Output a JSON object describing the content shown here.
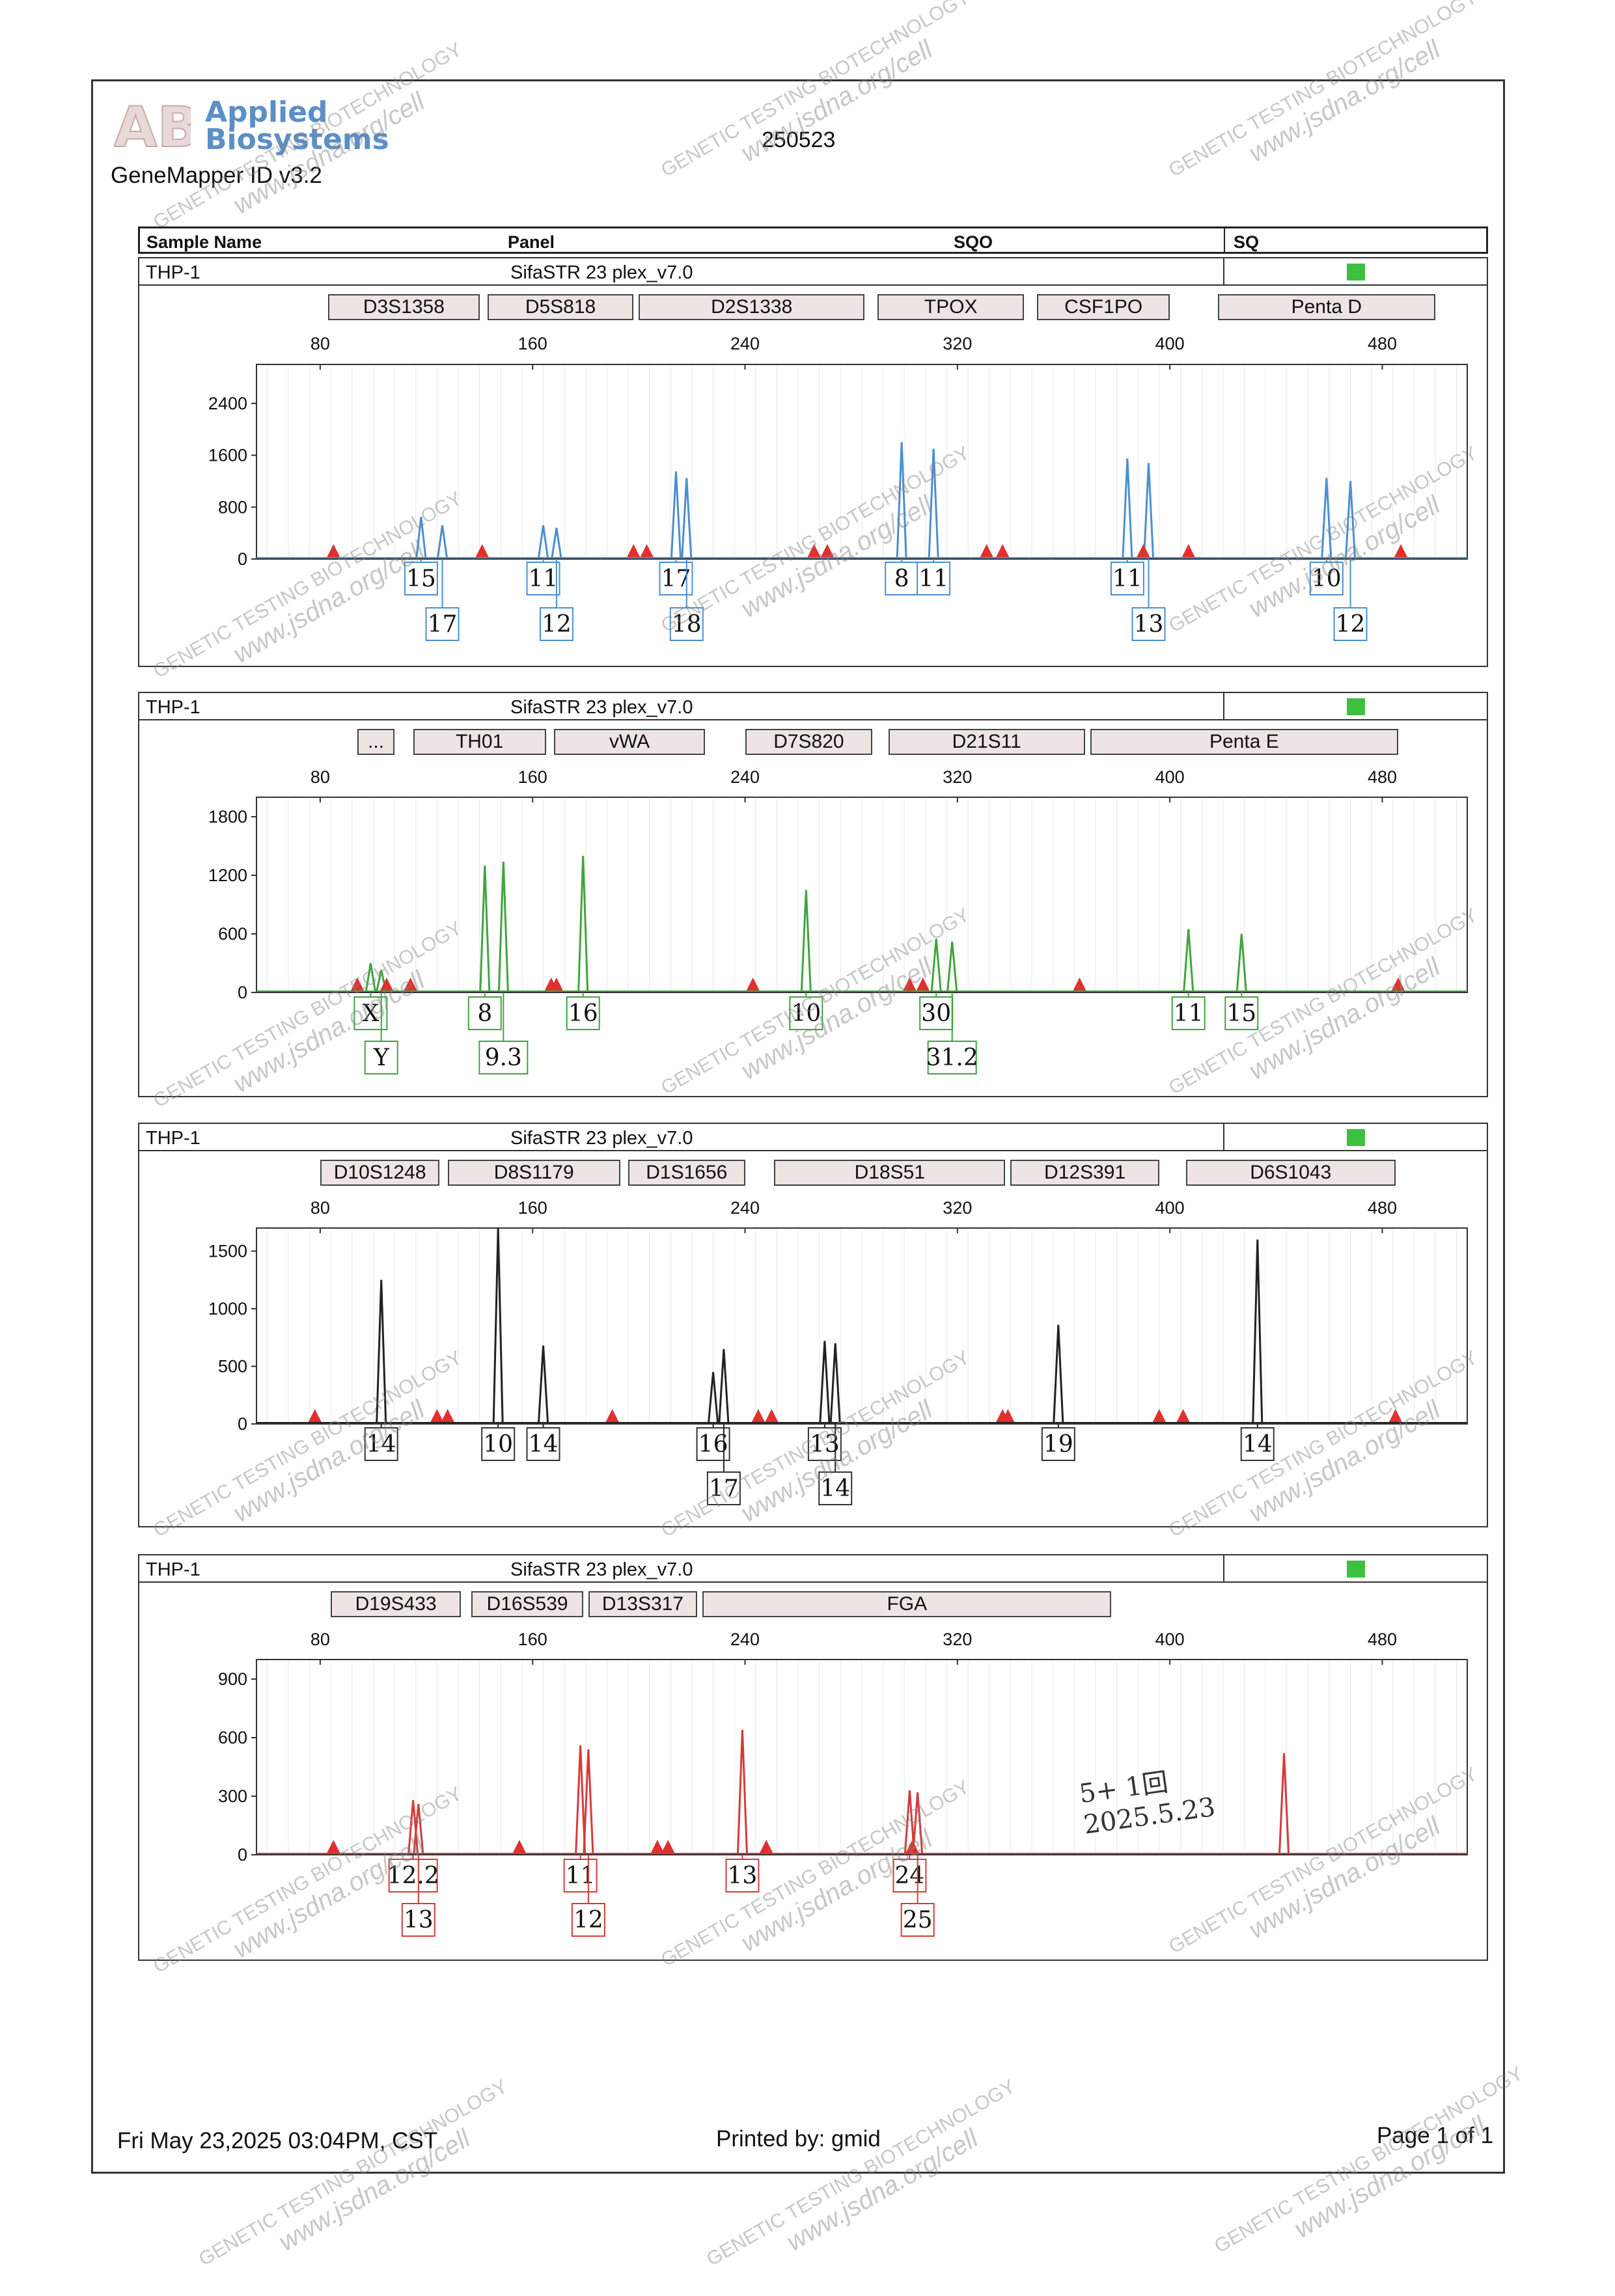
{
  "header": {
    "brand_line1": "Applied",
    "brand_line2": "Biosystems",
    "app": "GeneMapper ID v3.2",
    "report_id": "250523",
    "columns": [
      "Sample Name",
      "Panel",
      "SQO",
      "SQ"
    ]
  },
  "colors": {
    "blue": "#4a8fd0",
    "green": "#3fa53f",
    "black": "#222222",
    "red": "#d63a3a",
    "sq_ok": "#3fbf3f",
    "stutter_marker": "#e23030"
  },
  "watermark": {
    "line1": "GENETIC TESTING BIOTECHNOLOGY",
    "line2": "www.jsdna.org/cell"
  },
  "signature": {
    "line1": "5+ 1回",
    "line2": "2025.5.23"
  },
  "footer": {
    "date": "Fri May 23,2025 03:04PM, CST",
    "printed_by": "Printed by: gmid",
    "page": "Page 1 of 1"
  },
  "chart_data": [
    {
      "type": "line",
      "title": "THP-1",
      "sample": "THP-1",
      "panel": "SifaSTR 23 plex_v7.0",
      "dye": "blue",
      "markers": [
        {
          "name": "D3S1358",
          "range": [
            83,
            140
          ]
        },
        {
          "name": "D5S818",
          "range": [
            143,
            198
          ]
        },
        {
          "name": "D2S1338",
          "range": [
            200,
            285
          ]
        },
        {
          "name": "TPOX",
          "range": [
            290,
            345
          ]
        },
        {
          "name": "CSF1PO",
          "range": [
            350,
            400
          ]
        },
        {
          "name": "Penta D",
          "range": [
            418,
            500
          ]
        }
      ],
      "x_ticks": [
        80,
        160,
        240,
        320,
        400,
        480
      ],
      "y_ticks": [
        "0",
        "800",
        "1600",
        "2400"
      ],
      "xlim": [
        56,
        512
      ],
      "ylim": [
        0,
        3000
      ],
      "peaks": [
        {
          "x": 118,
          "y": 650
        },
        {
          "x": 126,
          "y": 520
        },
        {
          "x": 164,
          "y": 520
        },
        {
          "x": 169,
          "y": 480
        },
        {
          "x": 214,
          "y": 1350
        },
        {
          "x": 218,
          "y": 1250
        },
        {
          "x": 299,
          "y": 1800
        },
        {
          "x": 311,
          "y": 1700
        },
        {
          "x": 384,
          "y": 1550
        },
        {
          "x": 392,
          "y": 1480
        },
        {
          "x": 459,
          "y": 1250
        },
        {
          "x": 468,
          "y": 1200
        }
      ],
      "stutter_markers": [
        85,
        141,
        198,
        203,
        266,
        271,
        331,
        337,
        390,
        407,
        487
      ],
      "alleles": [
        {
          "label": "15",
          "x": 118,
          "row": 1
        },
        {
          "label": "17",
          "x": 126,
          "row": 2
        },
        {
          "label": "11",
          "x": 164,
          "row": 1
        },
        {
          "label": "12",
          "x": 169,
          "row": 2
        },
        {
          "label": "17",
          "x": 214,
          "row": 1
        },
        {
          "label": "18",
          "x": 218,
          "row": 2
        },
        {
          "label": "8",
          "x": 299,
          "row": 1
        },
        {
          "label": "11",
          "x": 311,
          "row": 1
        },
        {
          "label": "11",
          "x": 384,
          "row": 1
        },
        {
          "label": "13",
          "x": 392,
          "row": 2
        },
        {
          "label": "10",
          "x": 459,
          "row": 1
        },
        {
          "label": "12",
          "x": 468,
          "row": 2
        }
      ]
    },
    {
      "type": "line",
      "title": "THP-1",
      "sample": "THP-1",
      "panel": "SifaSTR 23 plex_v7.0",
      "dye": "green",
      "markers": [
        {
          "name": "...",
          "range": [
            94,
            108
          ]
        },
        {
          "name": "TH01",
          "range": [
            115,
            165
          ]
        },
        {
          "name": "vWA",
          "range": [
            168,
            225
          ]
        },
        {
          "name": "D7S820",
          "range": [
            240,
            288
          ]
        },
        {
          "name": "D21S11",
          "range": [
            294,
            368
          ]
        },
        {
          "name": "Penta E",
          "range": [
            370,
            486
          ]
        }
      ],
      "x_ticks": [
        80,
        160,
        240,
        320,
        400,
        480
      ],
      "y_ticks": [
        "0",
        "600",
        "1200",
        "1800"
      ],
      "xlim": [
        56,
        512
      ],
      "ylim": [
        0,
        2000
      ],
      "peaks": [
        {
          "x": 99,
          "y": 300
        },
        {
          "x": 103,
          "y": 230
        },
        {
          "x": 142,
          "y": 1300
        },
        {
          "x": 149,
          "y": 1340
        },
        {
          "x": 179,
          "y": 1400
        },
        {
          "x": 263,
          "y": 1050
        },
        {
          "x": 312,
          "y": 550
        },
        {
          "x": 318,
          "y": 520
        },
        {
          "x": 407,
          "y": 650
        },
        {
          "x": 427,
          "y": 600
        }
      ],
      "stutter_markers": [
        94,
        105,
        114,
        167,
        169,
        243,
        302,
        307,
        366,
        486
      ],
      "alleles": [
        {
          "label": "X",
          "x": 99,
          "row": 1
        },
        {
          "label": "Y",
          "x": 103,
          "row": 2
        },
        {
          "label": "8",
          "x": 142,
          "row": 1
        },
        {
          "label": "9.3",
          "x": 149,
          "row": 2
        },
        {
          "label": "16",
          "x": 179,
          "row": 1
        },
        {
          "label": "10",
          "x": 263,
          "row": 1
        },
        {
          "label": "30",
          "x": 312,
          "row": 1
        },
        {
          "label": "31.2",
          "x": 318,
          "row": 2
        },
        {
          "label": "11",
          "x": 407,
          "row": 1
        },
        {
          "label": "15",
          "x": 427,
          "row": 1
        }
      ]
    },
    {
      "type": "line",
      "title": "THP-1",
      "sample": "THP-1",
      "panel": "SifaSTR 23 plex_v7.0",
      "dye": "black",
      "markers": [
        {
          "name": "D10S1248",
          "range": [
            80,
            125
          ]
        },
        {
          "name": "D8S1179",
          "range": [
            128,
            193
          ]
        },
        {
          "name": "D1S1656",
          "range": [
            196,
            240
          ]
        },
        {
          "name": "D18S51",
          "range": [
            251,
            338
          ]
        },
        {
          "name": "D12S391",
          "range": [
            340,
            396
          ]
        },
        {
          "name": "D6S1043",
          "range": [
            406,
            485
          ]
        }
      ],
      "x_ticks": [
        80,
        160,
        240,
        320,
        400,
        480
      ],
      "y_ticks": [
        "0",
        "500",
        "1000",
        "1500"
      ],
      "xlim": [
        56,
        512
      ],
      "ylim": [
        0,
        1700
      ],
      "peaks": [
        {
          "x": 103,
          "y": 1250
        },
        {
          "x": 147,
          "y": 1700
        },
        {
          "x": 164,
          "y": 680
        },
        {
          "x": 228,
          "y": 450
        },
        {
          "x": 232,
          "y": 650
        },
        {
          "x": 270,
          "y": 720
        },
        {
          "x": 274,
          "y": 700
        },
        {
          "x": 358,
          "y": 860
        },
        {
          "x": 433,
          "y": 1600
        }
      ],
      "stutter_markers": [
        78,
        124,
        128,
        190,
        245,
        250,
        337,
        339,
        396,
        405,
        485
      ],
      "alleles": [
        {
          "label": "14",
          "x": 103,
          "row": 1
        },
        {
          "label": "10",
          "x": 147,
          "row": 1
        },
        {
          "label": "14",
          "x": 164,
          "row": 1
        },
        {
          "label": "16",
          "x": 228,
          "row": 1
        },
        {
          "label": "17",
          "x": 232,
          "row": 2
        },
        {
          "label": "13",
          "x": 270,
          "row": 1
        },
        {
          "label": "14",
          "x": 274,
          "row": 2
        },
        {
          "label": "19",
          "x": 358,
          "row": 1
        },
        {
          "label": "14",
          "x": 433,
          "row": 1
        }
      ]
    },
    {
      "type": "line",
      "title": "THP-1",
      "sample": "THP-1",
      "panel": "SifaSTR 23 plex_v7.0",
      "dye": "red",
      "markers": [
        {
          "name": "D19S433",
          "range": [
            84,
            133
          ]
        },
        {
          "name": "D16S539",
          "range": [
            137,
            179
          ]
        },
        {
          "name": "D13S317",
          "range": [
            181,
            222
          ]
        },
        {
          "name": "FGA",
          "range": [
            224,
            378
          ]
        }
      ],
      "x_ticks": [
        80,
        160,
        240,
        320,
        400,
        480
      ],
      "y_ticks": [
        "0",
        "300",
        "600",
        "900"
      ],
      "xlim": [
        56,
        512
      ],
      "ylim": [
        0,
        1000
      ],
      "peaks": [
        {
          "x": 115,
          "y": 280
        },
        {
          "x": 117,
          "y": 260
        },
        {
          "x": 178,
          "y": 560
        },
        {
          "x": 181,
          "y": 540
        },
        {
          "x": 239,
          "y": 640
        },
        {
          "x": 302,
          "y": 330
        },
        {
          "x": 305,
          "y": 320
        },
        {
          "x": 443,
          "y": 520
        }
      ],
      "stutter_markers": [
        85,
        155,
        207,
        211,
        248,
        303
      ],
      "alleles": [
        {
          "label": "12.2",
          "x": 115,
          "row": 1
        },
        {
          "label": "13",
          "x": 117,
          "row": 2
        },
        {
          "label": "11",
          "x": 178,
          "row": 1
        },
        {
          "label": "12",
          "x": 181,
          "row": 2
        },
        {
          "label": "13",
          "x": 239,
          "row": 1
        },
        {
          "label": "24",
          "x": 302,
          "row": 1
        },
        {
          "label": "25",
          "x": 305,
          "row": 2
        }
      ]
    }
  ]
}
